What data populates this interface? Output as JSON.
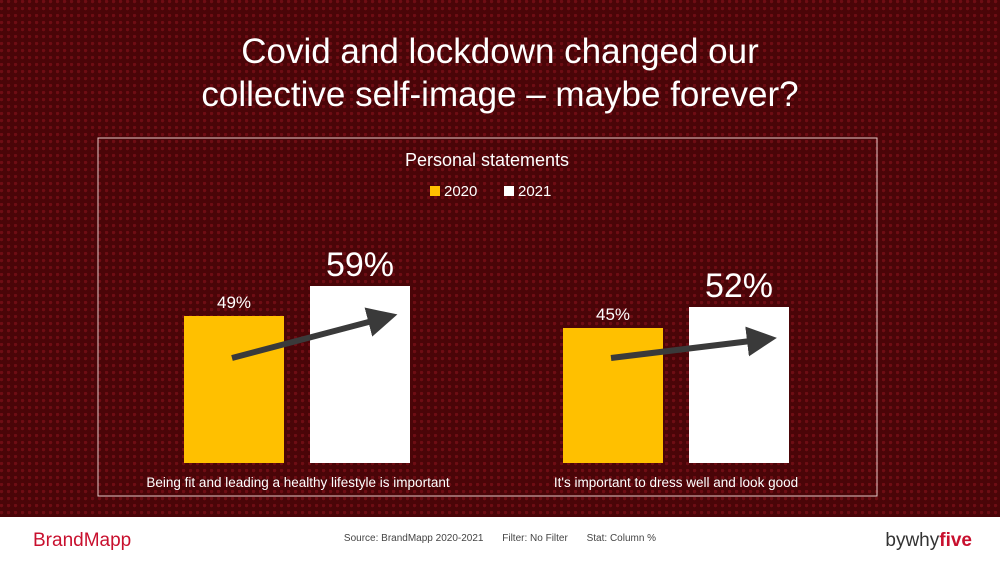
{
  "title_line1": "Covid and lockdown changed our",
  "title_line2": "collective self-image – maybe forever?",
  "chart_data": {
    "type": "bar",
    "title": "Personal statements",
    "categories": [
      "Being fit  and leading a healthy lifestyle is important",
      "It's important to dress well and look good"
    ],
    "series": [
      {
        "name": "2020",
        "values": [
          49,
          45
        ],
        "labels": [
          "49%",
          "45%"
        ],
        "color": "#FFC000"
      },
      {
        "name": "2021",
        "values": [
          59,
          52
        ],
        "labels": [
          "59%",
          "52%"
        ],
        "color": "#FFFFFF"
      }
    ],
    "ylim": [
      0,
      100
    ],
    "legend": "top",
    "grid": false,
    "annotations": "arrows from 2020 bar to 2021 bar",
    "arrow_color": "#3a3a3a"
  },
  "footer": {
    "brand_left": "BrandMapp",
    "source": "Source: BrandMapp 2020-2021",
    "filter": "Filter: No Filter",
    "stat": "Stat: Column %",
    "brand_right_prefix": "bywhy",
    "brand_right_suffix": "five"
  },
  "colors": {
    "background": "#4a0508",
    "accent": "#c8102e"
  }
}
